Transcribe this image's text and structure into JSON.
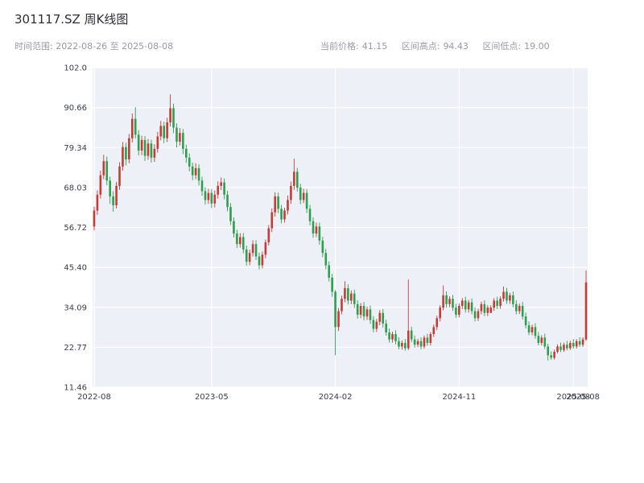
{
  "header": {
    "title": "301117.SZ 周K线图",
    "time_range_label": "时间范围:",
    "time_range_value": "2022-08-26 至 2025-08-08",
    "stats": [
      {
        "label": "当前价格:",
        "value": "41.15"
      },
      {
        "label": "区间高点:",
        "value": "94.43"
      },
      {
        "label": "区间低点:",
        "value": "19.00"
      }
    ]
  },
  "chart_data": {
    "type": "candlestick",
    "title": "301117.SZ 周K线图",
    "interval": "weekly",
    "start_date": "2022-08-26",
    "end_date": "2025-08-08",
    "current_price": 41.15,
    "period_high": 94.43,
    "period_low": 19.0,
    "ylim": [
      11.46,
      102.0
    ],
    "y_ticks": [
      {
        "label": "102.0",
        "value": 102.0
      },
      {
        "label": "90.66",
        "value": 90.66
      },
      {
        "label": "79.34",
        "value": 79.34
      },
      {
        "label": "68.03",
        "value": 68.03
      },
      {
        "label": "56.72",
        "value": 56.72
      },
      {
        "label": "45.40",
        "value": 45.4
      },
      {
        "label": "34.09",
        "value": 34.09
      },
      {
        "label": "22.77",
        "value": 22.77
      },
      {
        "label": "11.46",
        "value": 11.46
      }
    ],
    "x_ticks": [
      {
        "label": "2022-08",
        "index": 0
      },
      {
        "label": "2023-05",
        "index": 37
      },
      {
        "label": "2024-02",
        "index": 76
      },
      {
        "label": "2024-11",
        "index": 115
      },
      {
        "label": "2025-08",
        "index": 151
      }
    ],
    "x_extra_tick": {
      "label": "2025-08",
      "index": 154
    },
    "up_color": "#c43c35",
    "down_color": "#2e9e4f",
    "plot_bg": "#eef0f8",
    "grid_color": "#ffffff",
    "tick_text_color": "#3d3d4f",
    "grid": true,
    "legend": "none",
    "ohlc_columns": [
      "open",
      "high",
      "low",
      "close"
    ],
    "ohlc": [
      [
        57.0,
        62.6,
        55.9,
        61.5
      ],
      [
        61.5,
        67.2,
        60.3,
        66.0
      ],
      [
        66.0,
        72.8,
        64.9,
        71.5
      ],
      [
        71.5,
        77.3,
        70.4,
        75.5
      ],
      [
        75.5,
        76.8,
        68.7,
        70.0
      ],
      [
        70.0,
        71.1,
        63.4,
        65.5
      ],
      [
        65.5,
        67.0,
        61.2,
        63.0
      ],
      [
        63.0,
        69.6,
        62.1,
        68.5
      ],
      [
        68.5,
        75.2,
        67.4,
        74.0
      ],
      [
        74.0,
        80.9,
        72.8,
        79.5
      ],
      [
        79.5,
        80.7,
        74.3,
        76.0
      ],
      [
        76.0,
        83.2,
        74.9,
        82.0
      ],
      [
        82.0,
        89.0,
        80.8,
        87.5
      ],
      [
        87.5,
        90.8,
        81.9,
        83.0
      ],
      [
        83.0,
        84.3,
        77.1,
        78.5
      ],
      [
        78.5,
        82.7,
        77.2,
        81.5
      ],
      [
        81.5,
        82.6,
        75.6,
        77.0
      ],
      [
        77.0,
        81.8,
        75.9,
        80.5
      ],
      [
        80.5,
        81.6,
        75.1,
        76.5
      ],
      [
        76.5,
        80.3,
        75.3,
        79.0
      ],
      [
        79.0,
        83.8,
        77.9,
        82.5
      ],
      [
        82.5,
        86.9,
        81.4,
        85.5
      ],
      [
        85.5,
        86.7,
        80.6,
        82.0
      ],
      [
        82.0,
        87.8,
        80.9,
        86.5
      ],
      [
        86.5,
        94.43,
        85.3,
        90.5
      ],
      [
        90.5,
        91.8,
        83.4,
        85.0
      ],
      [
        85.0,
        86.2,
        79.4,
        81.0
      ],
      [
        81.0,
        84.9,
        79.9,
        83.5
      ],
      [
        83.5,
        84.6,
        77.5,
        79.0
      ],
      [
        79.0,
        80.2,
        75.0,
        76.5
      ],
      [
        76.5,
        77.7,
        72.6,
        74.0
      ],
      [
        74.0,
        75.1,
        70.1,
        71.5
      ],
      [
        71.5,
        74.9,
        70.4,
        73.5
      ],
      [
        73.5,
        74.6,
        68.6,
        70.0
      ],
      [
        70.0,
        71.1,
        65.7,
        67.0
      ],
      [
        67.0,
        68.1,
        63.2,
        64.5
      ],
      [
        64.5,
        67.7,
        63.4,
        66.5
      ],
      [
        66.5,
        67.6,
        62.2,
        63.5
      ],
      [
        63.5,
        67.2,
        62.4,
        66.0
      ],
      [
        66.0,
        69.8,
        64.9,
        68.5
      ],
      [
        68.5,
        70.9,
        67.3,
        69.5
      ],
      [
        69.5,
        70.6,
        64.7,
        66.0
      ],
      [
        66.0,
        67.1,
        61.3,
        62.5
      ],
      [
        62.5,
        63.6,
        57.4,
        58.5
      ],
      [
        58.5,
        59.6,
        53.9,
        55.0
      ],
      [
        55.0,
        56.1,
        50.9,
        52.0
      ],
      [
        52.0,
        55.1,
        51.0,
        54.0
      ],
      [
        54.0,
        55.1,
        49.4,
        50.5
      ],
      [
        50.5,
        51.6,
        45.9,
        47.0
      ],
      [
        47.0,
        50.4,
        46.0,
        49.5
      ],
      [
        49.5,
        53.1,
        48.5,
        52.0
      ],
      [
        52.0,
        53.1,
        47.5,
        48.5
      ],
      [
        48.5,
        49.6,
        44.8,
        46.0
      ],
      [
        46.0,
        49.9,
        45.1,
        49.0
      ],
      [
        49.0,
        53.3,
        48.0,
        52.5
      ],
      [
        52.5,
        57.4,
        51.6,
        56.5
      ],
      [
        56.5,
        62.1,
        55.4,
        61.0
      ],
      [
        61.0,
        66.7,
        59.8,
        65.5
      ],
      [
        65.5,
        66.6,
        60.8,
        62.0
      ],
      [
        62.0,
        63.1,
        57.9,
        59.0
      ],
      [
        59.0,
        62.3,
        58.1,
        61.5
      ],
      [
        61.5,
        65.8,
        60.4,
        64.5
      ],
      [
        64.5,
        69.7,
        63.4,
        68.5
      ],
      [
        68.5,
        76.2,
        67.4,
        72.5
      ],
      [
        72.5,
        73.6,
        66.9,
        68.0
      ],
      [
        68.0,
        69.1,
        63.3,
        64.5
      ],
      [
        64.5,
        67.7,
        63.6,
        66.5
      ],
      [
        66.5,
        67.6,
        60.8,
        62.0
      ],
      [
        62.0,
        63.1,
        57.3,
        58.5
      ],
      [
        58.5,
        59.6,
        53.8,
        55.0
      ],
      [
        55.0,
        58.1,
        54.0,
        57.0
      ],
      [
        57.0,
        58.1,
        51.8,
        53.0
      ],
      [
        53.0,
        54.1,
        48.3,
        49.5
      ],
      [
        49.5,
        50.6,
        44.9,
        46.0
      ],
      [
        46.0,
        47.1,
        41.4,
        42.5
      ],
      [
        42.5,
        43.6,
        37.1,
        38.5
      ],
      [
        38.5,
        39.0,
        20.5,
        28.5
      ],
      [
        28.5,
        33.9,
        27.4,
        33.0
      ],
      [
        33.0,
        37.4,
        32.1,
        36.5
      ],
      [
        36.5,
        41.5,
        35.5,
        39.5
      ],
      [
        39.5,
        40.6,
        34.9,
        36.0
      ],
      [
        36.0,
        38.9,
        35.0,
        38.0
      ],
      [
        38.0,
        39.1,
        33.9,
        35.0
      ],
      [
        35.0,
        36.1,
        30.9,
        32.0
      ],
      [
        32.0,
        35.3,
        31.0,
        34.5
      ],
      [
        34.5,
        35.6,
        30.4,
        31.5
      ],
      [
        31.5,
        34.3,
        30.5,
        33.5
      ],
      [
        33.5,
        34.6,
        29.4,
        30.5
      ],
      [
        30.5,
        31.6,
        27.0,
        28.0
      ],
      [
        28.0,
        30.8,
        27.1,
        30.0
      ],
      [
        30.0,
        33.3,
        29.0,
        32.5
      ],
      [
        32.5,
        33.6,
        28.4,
        29.5
      ],
      [
        29.5,
        30.6,
        26.1,
        27.0
      ],
      [
        27.0,
        28.1,
        24.1,
        25.0
      ],
      [
        25.0,
        27.2,
        24.1,
        26.5
      ],
      [
        26.5,
        27.6,
        23.6,
        24.5
      ],
      [
        24.5,
        25.6,
        22.2,
        23.0
      ],
      [
        23.0,
        24.7,
        22.1,
        24.0
      ],
      [
        24.0,
        25.1,
        21.8,
        22.5
      ],
      [
        22.5,
        42.0,
        22.0,
        27.5
      ],
      [
        27.5,
        28.6,
        24.2,
        25.0
      ],
      [
        25.0,
        26.1,
        22.7,
        23.5
      ],
      [
        23.5,
        25.2,
        22.8,
        24.5
      ],
      [
        24.5,
        25.6,
        22.2,
        23.0
      ],
      [
        23.0,
        26.1,
        22.4,
        25.5
      ],
      [
        25.5,
        26.6,
        23.2,
        24.0
      ],
      [
        24.0,
        27.1,
        23.3,
        26.5
      ],
      [
        26.5,
        29.2,
        25.7,
        28.5
      ],
      [
        28.5,
        31.7,
        27.6,
        31.0
      ],
      [
        31.0,
        34.7,
        30.1,
        34.0
      ],
      [
        34.0,
        40.3,
        33.2,
        37.5
      ],
      [
        37.5,
        38.6,
        34.0,
        35.0
      ],
      [
        35.0,
        37.2,
        34.1,
        36.5
      ],
      [
        36.5,
        37.6,
        33.1,
        34.0
      ],
      [
        34.0,
        35.1,
        31.1,
        32.0
      ],
      [
        32.0,
        35.2,
        31.2,
        34.5
      ],
      [
        34.5,
        36.7,
        33.6,
        36.0
      ],
      [
        36.0,
        37.1,
        32.6,
        33.5
      ],
      [
        33.5,
        36.2,
        32.6,
        35.5
      ],
      [
        35.5,
        36.6,
        32.1,
        33.0
      ],
      [
        33.0,
        34.1,
        30.1,
        31.0
      ],
      [
        31.0,
        33.7,
        30.2,
        33.0
      ],
      [
        33.0,
        35.7,
        32.1,
        35.0
      ],
      [
        35.0,
        36.1,
        31.6,
        32.5
      ],
      [
        32.5,
        34.7,
        31.6,
        34.0
      ],
      [
        32.5,
        34.7,
        33.1,
        34.0
      ],
      [
        34.0,
        36.7,
        33.1,
        36.0
      ],
      [
        36.0,
        37.1,
        33.6,
        34.5
      ],
      [
        34.5,
        37.2,
        33.7,
        36.5
      ],
      [
        36.5,
        40.0,
        35.7,
        38.5
      ],
      [
        38.5,
        39.6,
        35.1,
        36.0
      ],
      [
        36.0,
        38.2,
        35.1,
        37.5
      ],
      [
        37.5,
        38.6,
        34.1,
        35.0
      ],
      [
        35.0,
        36.1,
        32.1,
        33.0
      ],
      [
        33.0,
        35.2,
        32.2,
        34.5
      ],
      [
        34.5,
        35.6,
        30.6,
        31.5
      ],
      [
        31.5,
        32.6,
        28.1,
        29.0
      ],
      [
        29.0,
        30.1,
        26.2,
        27.0
      ],
      [
        27.0,
        29.2,
        26.2,
        28.5
      ],
      [
        28.5,
        29.6,
        25.2,
        26.0
      ],
      [
        26.0,
        27.1,
        23.3,
        24.0
      ],
      [
        24.0,
        26.2,
        23.3,
        25.5
      ],
      [
        25.5,
        26.6,
        22.3,
        23.0
      ],
      [
        23.0,
        23.8,
        19.0,
        20.5
      ],
      [
        20.5,
        21.6,
        19.2,
        19.8
      ],
      [
        19.8,
        22.1,
        19.3,
        21.5
      ],
      [
        21.5,
        23.6,
        21.0,
        23.0
      ],
      [
        23.0,
        24.1,
        21.4,
        22.0
      ],
      [
        22.0,
        24.1,
        21.5,
        23.5
      ],
      [
        23.5,
        24.6,
        21.9,
        22.5
      ],
      [
        22.5,
        24.6,
        22.0,
        24.0
      ],
      [
        24.0,
        25.1,
        22.4,
        23.0
      ],
      [
        23.0,
        25.1,
        22.4,
        24.5
      ],
      [
        24.5,
        25.6,
        22.9,
        23.5
      ],
      [
        23.5,
        25.6,
        22.9,
        25.0
      ],
      [
        25.0,
        44.5,
        24.6,
        41.15
      ]
    ]
  }
}
